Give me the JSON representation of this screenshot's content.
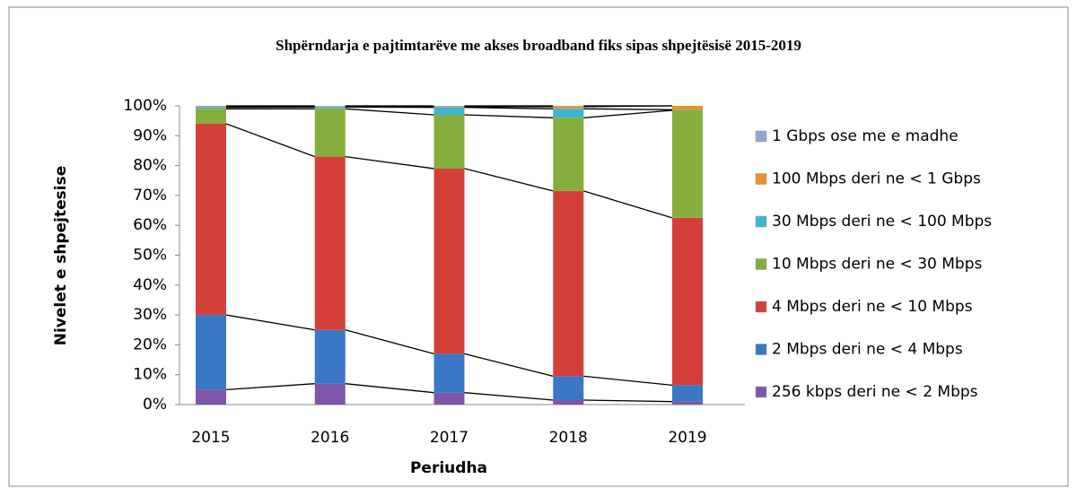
{
  "chart_data": {
    "type": "stacked_bar",
    "title": "Shpërndarja e pajtimtarëve me akses broadband fiks sipas shpejtësisë 2015-2019",
    "x_label": "Periudha",
    "y_label": "Nivelet e shpejtesise",
    "categories": [
      "2015",
      "2016",
      "2017",
      "2018",
      "2019"
    ],
    "series": [
      {
        "name": "256 kbps deri ne < 2 Mbps",
        "color": "#7f57a8",
        "values": [
          5,
          7,
          4,
          1.5,
          1
        ]
      },
      {
        "name": "2 Mbps deri ne < 4 Mbps",
        "color": "#3a78c6",
        "values": [
          25,
          18,
          13,
          8,
          5.5
        ]
      },
      {
        "name": "4 Mbps deri ne < 10 Mbps",
        "color": "#d43f3a",
        "values": [
          64,
          58,
          62,
          62,
          56
        ]
      },
      {
        "name": "10 Mbps deri ne < 30 Mbps",
        "color": "#86ae3c",
        "values": [
          5,
          16,
          18,
          24.5,
          36
        ]
      },
      {
        "name": "30 Mbps deri ne < 100 Mbps",
        "color": "#3cb6d0",
        "values": [
          0.5,
          0.6,
          2.5,
          3,
          0.2
        ]
      },
      {
        "name": "100 Mbps deri ne < 1 Gbps",
        "color": "#f0902c",
        "values": [
          0.2,
          0.2,
          0.2,
          0.7,
          1.3
        ]
      },
      {
        "name": "1 Gbps ose me e madhe",
        "color": "#8fa7cf",
        "values": [
          0.3,
          0.2,
          0.3,
          0.3,
          0
        ]
      }
    ],
    "ylim": [
      0,
      100
    ],
    "yticks": [
      {
        "value": 0,
        "label": "0%"
      },
      {
        "value": 10,
        "label": "10%"
      },
      {
        "value": 20,
        "label": "20%"
      },
      {
        "value": 30,
        "label": "30%"
      },
      {
        "value": 40,
        "label": "40%"
      },
      {
        "value": 50,
        "label": "50%"
      },
      {
        "value": 60,
        "label": "60%"
      },
      {
        "value": 70,
        "label": "70%"
      },
      {
        "value": 80,
        "label": "80%"
      },
      {
        "value": 90,
        "label": "90%"
      },
      {
        "value": 100,
        "label": "100%"
      }
    ],
    "series_lines": true,
    "legend": "right"
  }
}
